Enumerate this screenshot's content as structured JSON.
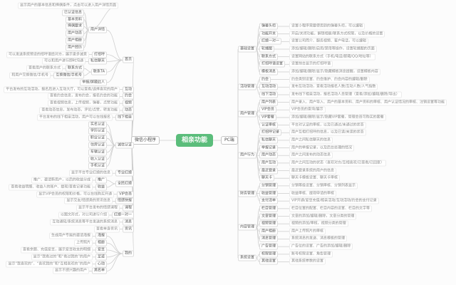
{
  "colors": {
    "background": "#fcfcfc",
    "central_bg": "#5bbd7b",
    "central_text": "#ffffff",
    "node_border": "#dddddd",
    "node_text": "#595959",
    "desc_text": "#8c8c8c",
    "line": "#cfcfcf"
  },
  "central": {
    "label": "相亲功能"
  },
  "left": {
    "label": "微信小程序",
    "children": [
      {
        "label": "首页",
        "children": [
          {
            "label": "用户详情",
            "note": "显示用户的基本信息和择偶条件，点击可以进入用户详情页面",
            "children": [
              {
                "label": "已认证信息"
              },
              {
                "label": "基本资料"
              },
              {
                "label": "择偶要求"
              },
              {
                "label": "用户动态"
              },
              {
                "label": "用户相册"
              },
              {
                "label": "用户经历"
              }
            ]
          },
          {
            "label": "打招呼",
            "desc": "可以发送系统预设的招呼语给对方，展示更多诚意"
          },
          {
            "label": "私信聊天",
            "desc": "可以和用户进行即时沟通"
          },
          {
            "label": "联系TA",
            "children": [
              {
                "label": "联系方式",
                "desc": "查看用户的联系方式"
              },
              {
                "label": "互换微信/手机号",
                "desc": "和用户交换微信/手机号"
              }
            ]
          },
          {
            "label": "举报/屏蔽此人"
          }
        ]
      },
      {
        "label": "互动",
        "desc": "平台发布的互动活动，报名后进入互动大厅，可以查看/选择喜欢的用户"
      },
      {
        "label": "约会",
        "desc": "查看约会信息，发布约会，报名约会的功能"
      },
      {
        "label": "视频",
        "desc": "查看视频信息，上传视频，弹幕，点赞功能"
      },
      {
        "label": "动态",
        "desc": "查看动态信息，发布动态，评论/点赞，转发功能"
      },
      {
        "label": "线下相亲",
        "desc": "平台发布的线下相亲活动，用户可以在线报名"
      },
      {
        "label": "诚信认证",
        "children": [
          {
            "label": "实名认证"
          },
          {
            "label": "学历认证"
          },
          {
            "label": "职业认证"
          },
          {
            "label": "住房认证"
          },
          {
            "label": "车辆认证"
          },
          {
            "label": "收入认证"
          },
          {
            "label": "手机认证"
          }
        ]
      },
      {
        "label": "专业红娘",
        "desc": "显示平台专业红娘的信息"
      },
      {
        "label": "全民红娘",
        "children": [
          {
            "label": "推广",
            "desc": "推广、邀请新用户，以后的收益分成"
          },
          {
            "label": "收益",
            "desc": "查看收益明细、收益人的账户、提现/查看记录功能"
          }
        ]
      },
      {
        "label": "VIP会员",
        "desc": "显示VIP会员的权限和价格，可以在线购买开通"
      },
      {
        "label": "情感快报",
        "desc": "显示交友/情感类的资讯信息"
      },
      {
        "label": "课程",
        "desc": "显示平台发布的情感课程"
      },
      {
        "label": "红娘一对一",
        "desc": "以图文形式，对公司进行介绍"
      },
      {
        "label": "消息",
        "desc": "互动通知/系统消息等平台发送的系统消息"
      },
      {
        "label": "资讯",
        "desc": "查看单身资讯"
      },
      {
        "label": "我的",
        "children": [
          {
            "label": "海报",
            "desc": "生成用户专属的邀请海报"
          },
          {
            "label": "相册",
            "desc": "上传照片"
          },
          {
            "label": "爱豆",
            "desc": "查看余额、充值爱豆，展示爱豆收支的明细"
          },
          {
            "label": "足迹",
            "desc": "显示“我看过的”和“看过我的”的用户"
          },
          {
            "label": "心动",
            "desc": "显示“我喜欢的”、“喜欢我的”和“互相喜欢的”的用户"
          },
          {
            "label": "黑名单",
            "desc": "显示不感兴趣的用户"
          }
        ]
      }
    ]
  },
  "right": {
    "label": "PC端",
    "children": [
      {
        "label": "基础设置",
        "children": [
          {
            "label": "弹幕头衔",
            "desc": "设置小程序需要使用到的弹幕头衔，可以编辑"
          },
          {
            "label": "功能开关",
            "desc": "开启/关闭功能，解锁相册/联系方式权限，以及价格的设置"
          },
          {
            "label": "红娘一对一",
            "desc": "设置公司简介、服务视频、客户电话，可以编辑"
          },
          {
            "label": "轮播图",
            "desc": "添加/编辑/删除/启用/禁用等操作，设置轮播图的页面"
          },
          {
            "label": "联系方式",
            "desc": "设置网站的联系方式（手机/电话/邮箱/QQ/地址等）"
          },
          {
            "label": "打招呼语设置",
            "desc": "设置前台显示的打招呼语"
          },
          {
            "label": "模板消息",
            "desc": "添加/编辑/删除/显示/隐藏模板消息提醒，设置模板内容"
          }
        ]
      },
      {
        "label": "活动管理",
        "children": [
          {
            "label": "约会",
            "desc": "约会类别设置、约会维护、约会内容的编辑/删除"
          },
          {
            "label": "互动活动",
            "desc": "发布互动活动，查看活动报名人数/互动人数/人气指数"
          },
          {
            "label": "线下活动",
            "desc": "发布线下相亲活动，报名活动人员管理（查看/添加/编辑/删除/导出）"
          }
        ]
      },
      {
        "label": "用户管理",
        "children": [
          {
            "label": "用户列表",
            "desc": "用户录入、用户导入、用户的基本资料、用户资料的审核、用户认证情况的审核、注销设置等功能"
          },
          {
            "label": "VIP会员",
            "desc": "VIP会员的查询/展示"
          },
          {
            "label": "VIP套餐",
            "desc": "添加/编辑/删除/显示/隐藏VIP套餐，管理会员可购买的套餐"
          },
          {
            "label": "认证审核",
            "desc": "平台对认证的审核，以及已通过/未通过的状态"
          }
        ]
      },
      {
        "label": "用户行为",
        "children": [
          {
            "label": "打招呼记录",
            "desc": "用户互相打招呼的信息，以及已读/未读的状态"
          },
          {
            "label": "私信聊天",
            "desc": "用户之间私信聊天的信息"
          },
          {
            "label": "举报记录",
            "desc": "用户的举报记录，以及后台处理的情况"
          },
          {
            "label": "用户动态",
            "desc": "用户之间发布的动态信息"
          },
          {
            "label": "用户互动",
            "desc": "用户之间互动的状态（喜欢对方/互相喜欢/已查看/已回复）"
          },
          {
            "label": "最近登录",
            "desc": "最近登录系统的用户的信息"
          },
          {
            "label": "聊天卡",
            "desc": "聊天卡模板设置、聊天卡审核"
          }
        ]
      },
      {
        "label": "财务管理",
        "children": [
          {
            "label": "分销管理",
            "desc": "分销等级设置、分销审核、分销列表显示"
          },
          {
            "label": "收益管理",
            "desc": "收益审核、提现申请的审核"
          },
          {
            "label": "支付清单",
            "desc": "VIP开通/爱豆充值/相亲活动/互动活动/约会的支付记录"
          }
        ]
      },
      {
        "label": "内容管理",
        "children": [
          {
            "label": "栏目管理",
            "desc": "栏目位置的配置、栏目内容的设置、栏目的文字等"
          },
          {
            "label": "文章管理",
            "desc": "文章的添加/编辑/删除，文章分类的管理"
          },
          {
            "label": "视频管理",
            "desc": "视频的添加/审核，视频分类的管理"
          },
          {
            "label": "用户相册",
            "desc": "用户上传照片的审核"
          },
          {
            "label": "消息管理",
            "desc": "系统消息的发送、消息模板的管理"
          },
          {
            "label": "广告管理",
            "desc": "广告位的设置、广告的添加/编辑/删除"
          }
        ]
      },
      {
        "label": "系统设置",
        "children": [
          {
            "label": "权限管理",
            "desc": "账号权限设置、角色管理"
          },
          {
            "label": "其他设置",
            "desc": "其他系统参数的设置"
          }
        ]
      }
    ]
  }
}
